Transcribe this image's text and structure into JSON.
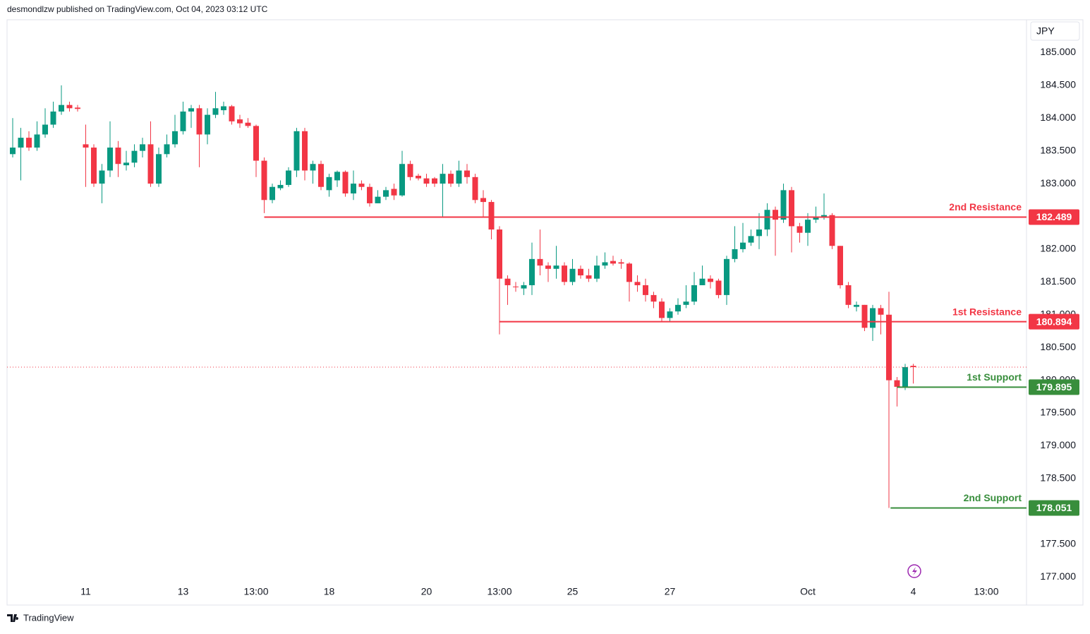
{
  "header": "desmondlzw published on TradingView.com, Oct 04, 2023 03:12 UTC",
  "footer": "TradingView",
  "chart_data": {
    "type": "candlestick",
    "currency": "JPY",
    "up_color": "#089981",
    "down_color": "#f23645",
    "ylim": [
      176.57,
      185.5
    ],
    "yticks": [
      {
        "value": 177,
        "label": "177.000"
      },
      {
        "value": 177.5,
        "label": "177.500"
      },
      {
        "value": 178,
        "label": "178.000"
      },
      {
        "value": 178.5,
        "label": "178.500"
      },
      {
        "value": 179,
        "label": "179.000"
      },
      {
        "value": 179.5,
        "label": "179.500"
      },
      {
        "value": 180,
        "label": "180.000"
      },
      {
        "value": 180.5,
        "label": "180.500"
      },
      {
        "value": 181,
        "label": "181.000"
      },
      {
        "value": 181.5,
        "label": "181.500"
      },
      {
        "value": 182,
        "label": "182.000"
      },
      {
        "value": 182.5,
        "label": "182.500"
      },
      {
        "value": 183,
        "label": "183.000"
      },
      {
        "value": 183.5,
        "label": "183.500"
      },
      {
        "value": 184,
        "label": "184.000"
      },
      {
        "value": 184.5,
        "label": "184.500"
      },
      {
        "value": 185,
        "label": "185.000"
      }
    ],
    "categories": [
      null,
      null,
      null,
      null,
      null,
      null,
      null,
      null,
      null,
      "11",
      null,
      null,
      null,
      null,
      null,
      null,
      null,
      null,
      null,
      null,
      null,
      "13",
      null,
      null,
      null,
      null,
      null,
      null,
      null,
      null,
      "13:00",
      null,
      null,
      null,
      null,
      null,
      null,
      null,
      null,
      "18",
      null,
      null,
      null,
      null,
      null,
      null,
      null,
      null,
      null,
      null,
      null,
      "20",
      null,
      null,
      null,
      null,
      null,
      null,
      null,
      null,
      "13:00",
      null,
      null,
      null,
      null,
      null,
      null,
      null,
      null,
      "25",
      null,
      null,
      null,
      null,
      null,
      null,
      null,
      null,
      null,
      null,
      null,
      "27",
      null,
      null,
      null,
      null,
      null,
      null,
      null,
      null,
      null,
      null,
      null,
      null,
      null,
      null,
      null,
      null,
      "Oct",
      null,
      null,
      null,
      null,
      null,
      null,
      null,
      null,
      null,
      null,
      null,
      null,
      "4",
      null,
      null,
      null,
      null,
      null,
      null,
      null,
      null,
      "13:00"
    ],
    "open": [
      183.45,
      183.55,
      183.7,
      183.55,
      183.75,
      183.9,
      184.1,
      184.2,
      184.16,
      183.6,
      183.55,
      183.0,
      183.2,
      183.55,
      183.28,
      183.32,
      183.5,
      183.6,
      183.0,
      183.45,
      183.6,
      183.8,
      184.1,
      184.15,
      183.75,
      184.05,
      184.12,
      184.18,
      183.98,
      183.93,
      183.88,
      183.35,
      182.75,
      182.93,
      182.98,
      183.2,
      183.8,
      183.2,
      183.3,
      182.9,
      183.05,
      183.18,
      182.85,
      183.0,
      182.95,
      182.7,
      182.8,
      182.92,
      182.82,
      183.3,
      183.12,
      183.08,
      183.08,
      183.0,
      183.15,
      183.0,
      183.2,
      183.1,
      182.78,
      182.72,
      182.3,
      181.55,
      181.43,
      181.4,
      181.45,
      181.85,
      181.75,
      181.7,
      181.75,
      181.5,
      181.7,
      181.6,
      181.55,
      181.75,
      181.82,
      181.8,
      181.78,
      181.5,
      181.45,
      181.3,
      181.2,
      180.95,
      181.05,
      181.15,
      181.2,
      181.45,
      181.55,
      181.52,
      181.3,
      181.85,
      182.0,
      182.1,
      182.2,
      182.3,
      182.6,
      182.45,
      182.9,
      182.35,
      182.25,
      182.45,
      182.48,
      182.52,
      182.05,
      181.45,
      181.12,
      181.15,
      180.8,
      181.1,
      181.0,
      180.0,
      179.9,
      180.22,
      null,
      null,
      null,
      null,
      null,
      null,
      null,
      null,
      null
    ],
    "high": [
      184.0,
      183.85,
      183.8,
      183.95,
      184.15,
      184.25,
      184.5,
      184.25,
      184.2,
      183.9,
      183.6,
      183.3,
      183.95,
      183.65,
      183.5,
      183.6,
      183.7,
      183.95,
      183.55,
      183.75,
      184.05,
      184.25,
      184.2,
      184.2,
      184.15,
      184.4,
      184.25,
      184.2,
      184.05,
      184.0,
      183.9,
      183.4,
      183.0,
      183.05,
      183.25,
      183.85,
      183.85,
      183.35,
      183.35,
      183.15,
      183.2,
      183.2,
      183.2,
      183.05,
      183.0,
      182.9,
      182.95,
      183.0,
      183.5,
      183.35,
      183.15,
      183.15,
      183.1,
      183.3,
      183.2,
      183.35,
      183.3,
      183.15,
      182.9,
      182.75,
      182.35,
      181.6,
      181.5,
      181.5,
      182.1,
      182.3,
      181.8,
      182.05,
      181.8,
      181.85,
      181.75,
      181.7,
      181.9,
      181.95,
      181.9,
      181.85,
      181.8,
      181.6,
      181.55,
      181.35,
      181.25,
      181.1,
      181.25,
      181.45,
      181.65,
      181.75,
      181.6,
      181.55,
      181.9,
      182.35,
      182.4,
      182.3,
      182.55,
      182.7,
      182.65,
      183.0,
      182.95,
      182.4,
      182.55,
      182.65,
      182.85,
      182.55,
      182.05,
      181.5,
      181.2,
      181.15,
      181.15,
      181.15,
      181.35,
      180.05,
      180.25,
      180.25,
      null,
      null,
      null,
      null,
      null,
      null,
      null,
      null,
      null
    ],
    "low": [
      183.4,
      183.05,
      183.5,
      183.5,
      183.7,
      183.85,
      184.05,
      184.1,
      184.1,
      182.95,
      182.95,
      182.7,
      183.1,
      183.1,
      183.2,
      183.25,
      183.4,
      182.95,
      182.95,
      183.4,
      183.55,
      183.75,
      183.85,
      183.25,
      183.6,
      184.0,
      184.05,
      183.9,
      183.85,
      183.85,
      183.1,
      182.55,
      182.7,
      182.9,
      182.95,
      183.1,
      183.05,
      183.0,
      182.9,
      182.8,
      182.95,
      182.8,
      182.75,
      182.9,
      182.65,
      182.7,
      182.75,
      182.75,
      182.8,
      183.05,
      183.05,
      182.95,
      182.95,
      182.5,
      182.95,
      182.95,
      183.0,
      182.7,
      182.5,
      182.15,
      180.7,
      181.15,
      181.35,
      181.3,
      181.3,
      181.6,
      181.5,
      181.55,
      181.45,
      181.45,
      181.55,
      181.5,
      181.5,
      181.7,
      181.75,
      181.7,
      181.2,
      181.35,
      181.2,
      181.1,
      180.9,
      180.9,
      181.0,
      181.1,
      181.15,
      181.45,
      181.4,
      181.25,
      181.15,
      181.8,
      181.95,
      182.05,
      182.0,
      182.2,
      181.9,
      182.4,
      181.95,
      182.1,
      182.05,
      182.4,
      182.45,
      182.0,
      181.4,
      181.1,
      181.05,
      180.75,
      180.6,
      180.7,
      178.051,
      179.6,
      179.85,
      179.95,
      null,
      null,
      null,
      null,
      null,
      null,
      null,
      null,
      null
    ],
    "close": [
      183.55,
      183.7,
      183.55,
      183.75,
      183.9,
      184.1,
      184.2,
      184.15,
      184.14,
      183.55,
      183.0,
      183.2,
      183.55,
      183.3,
      183.32,
      183.5,
      183.6,
      183.0,
      183.45,
      183.6,
      183.8,
      184.1,
      184.15,
      183.75,
      184.05,
      184.15,
      184.18,
      183.95,
      183.92,
      183.88,
      183.35,
      182.75,
      182.95,
      182.98,
      183.2,
      183.8,
      183.2,
      183.3,
      182.95,
      183.1,
      183.18,
      182.85,
      183.0,
      182.95,
      182.7,
      182.8,
      182.9,
      182.82,
      183.3,
      183.1,
      183.08,
      183.0,
      183.0,
      183.15,
      183.0,
      183.2,
      183.1,
      182.75,
      182.72,
      182.3,
      181.55,
      181.45,
      181.42,
      181.45,
      181.85,
      181.75,
      181.7,
      181.75,
      181.5,
      181.7,
      181.6,
      181.55,
      181.75,
      181.8,
      181.78,
      181.78,
      181.5,
      181.45,
      181.3,
      181.2,
      180.95,
      181.05,
      181.15,
      181.2,
      181.45,
      181.55,
      181.5,
      181.3,
      181.85,
      182.0,
      182.1,
      182.2,
      182.3,
      182.6,
      182.45,
      182.9,
      182.35,
      182.25,
      182.45,
      182.5,
      182.52,
      182.05,
      181.45,
      181.15,
      181.15,
      180.8,
      181.1,
      181.0,
      180.0,
      179.9,
      180.2,
      180.2,
      null,
      null,
      null,
      null,
      null,
      null,
      null,
      null,
      null
    ],
    "levels": [
      {
        "name": "2nd Resistance",
        "value": 182.489,
        "color": "#f23645"
      },
      {
        "name": "1st Resistance",
        "value": 180.894,
        "color": "#f23645"
      },
      {
        "name": "1st Support",
        "value": 179.895,
        "color": "#388e3c"
      },
      {
        "name": "2nd Support",
        "value": 178.051,
        "color": "#388e3c"
      }
    ]
  }
}
